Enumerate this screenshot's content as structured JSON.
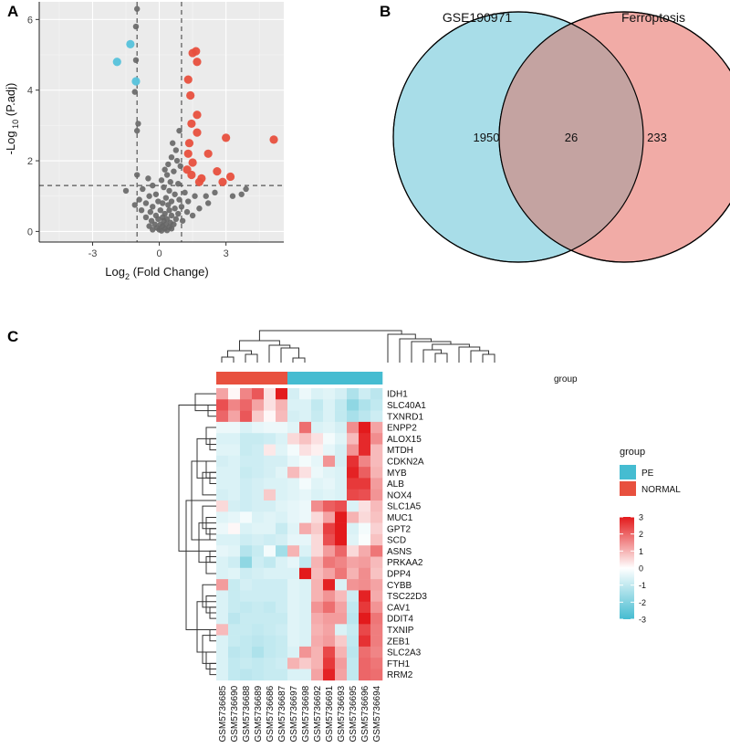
{
  "panels": {
    "a": "A",
    "b": "B",
    "c": "C"
  },
  "chart_data": [
    {
      "type": "scatter",
      "panel": "A",
      "title": "",
      "xlabel_main": "Log",
      "xlabel_sub": "2",
      "xlabel_rest": " (Fold Change)",
      "ylabel_main": "-Log",
      "ylabel_sub": " 10",
      "ylabel_rest": " (P.adj)",
      "xlim": [
        -5.4,
        5.6
      ],
      "ylim": [
        -0.3,
        6.5
      ],
      "x_ticks": [
        -3,
        0,
        3
      ],
      "y_ticks": [
        0,
        2,
        4,
        6
      ],
      "grid": true,
      "thresholds": {
        "log2fc": [
          -1,
          1
        ],
        "neg_log10_padj": 1.3
      },
      "colors": {
        "up": "#e8503e",
        "down": "#56c2db",
        "ns": "#666666",
        "background": "#ebebeb",
        "grid": "#ffffff"
      },
      "series": [
        {
          "name": "down",
          "points": [
            [
              -1.3,
              5.3
            ],
            [
              -1.9,
              4.8
            ],
            [
              -1.05,
              4.25
            ]
          ]
        },
        {
          "name": "up",
          "points": [
            [
              1.65,
              5.1
            ],
            [
              1.5,
              5.05
            ],
            [
              1.7,
              4.8
            ],
            [
              1.3,
              4.3
            ],
            [
              1.4,
              3.85
            ],
            [
              1.7,
              3.3
            ],
            [
              1.45,
              3.05
            ],
            [
              1.7,
              2.8
            ],
            [
              3.0,
              2.65
            ],
            [
              5.15,
              2.6
            ],
            [
              1.35,
              2.5
            ],
            [
              2.2,
              2.2
            ],
            [
              1.3,
              2.2
            ],
            [
              1.5,
              1.95
            ],
            [
              1.25,
              1.75
            ],
            [
              2.6,
              1.7
            ],
            [
              1.45,
              1.6
            ],
            [
              1.9,
              1.5
            ],
            [
              3.2,
              1.55
            ],
            [
              1.8,
              1.4
            ],
            [
              2.85,
              1.4
            ]
          ]
        },
        {
          "name": "ns",
          "points": [
            [
              -1.0,
              6.3
            ],
            [
              -1.05,
              5.8
            ],
            [
              -1.05,
              4.85
            ],
            [
              -1.1,
              3.95
            ],
            [
              -0.95,
              3.05
            ],
            [
              -1.0,
              2.85
            ],
            [
              0.9,
              2.85
            ],
            [
              0.6,
              2.5
            ],
            [
              0.75,
              2.3
            ],
            [
              0.55,
              2.1
            ],
            [
              0.8,
              2.0
            ],
            [
              0.4,
              1.9
            ],
            [
              0.95,
              1.85
            ],
            [
              0.25,
              1.75
            ],
            [
              0.65,
              1.7
            ],
            [
              0.35,
              1.6
            ],
            [
              -1.0,
              1.6
            ],
            [
              -0.5,
              1.5
            ],
            [
              0.1,
              1.45
            ],
            [
              0.5,
              1.4
            ],
            [
              0.85,
              1.35
            ],
            [
              -0.3,
              1.3
            ],
            [
              0.2,
              1.25
            ],
            [
              -0.75,
              1.2
            ],
            [
              0.45,
              1.15
            ],
            [
              -1.5,
              1.15
            ],
            [
              1.15,
              1.1
            ],
            [
              -0.15,
              1.05
            ],
            [
              0.7,
              1.05
            ],
            [
              3.9,
              1.2
            ],
            [
              3.7,
              1.05
            ],
            [
              3.3,
              1.0
            ],
            [
              1.6,
              1.0
            ],
            [
              2.1,
              1.0
            ],
            [
              2.5,
              1.1
            ],
            [
              -0.45,
              1.0
            ],
            [
              0.3,
              0.95
            ],
            [
              -0.9,
              0.9
            ],
            [
              0.9,
              0.9
            ],
            [
              -0.05,
              0.85
            ],
            [
              0.55,
              0.85
            ],
            [
              1.3,
              0.85
            ],
            [
              -0.6,
              0.8
            ],
            [
              0.15,
              0.8
            ],
            [
              2.2,
              0.8
            ],
            [
              -1.1,
              0.75
            ],
            [
              0.4,
              0.75
            ],
            [
              1.0,
              0.7
            ],
            [
              -0.3,
              0.7
            ],
            [
              0.7,
              0.65
            ],
            [
              1.8,
              0.65
            ],
            [
              -0.8,
              0.6
            ],
            [
              0.05,
              0.6
            ],
            [
              0.45,
              0.6
            ],
            [
              1.25,
              0.55
            ],
            [
              -0.4,
              0.55
            ],
            [
              0.25,
              0.5
            ],
            [
              0.85,
              0.5
            ],
            [
              -0.15,
              0.45
            ],
            [
              0.55,
              0.45
            ],
            [
              1.5,
              0.45
            ],
            [
              -0.6,
              0.4
            ],
            [
              0.15,
              0.4
            ],
            [
              -0.05,
              0.35
            ],
            [
              0.35,
              0.35
            ],
            [
              0.75,
              0.35
            ],
            [
              1.05,
              0.3
            ],
            [
              -0.35,
              0.3
            ],
            [
              0.2,
              0.3
            ],
            [
              0.5,
              0.25
            ],
            [
              -0.2,
              0.2
            ],
            [
              0.05,
              0.2
            ],
            [
              0.3,
              0.2
            ],
            [
              0.65,
              0.2
            ],
            [
              -0.45,
              0.15
            ],
            [
              0.15,
              0.15
            ],
            [
              0.45,
              0.12
            ],
            [
              -0.1,
              0.1
            ],
            [
              0.25,
              0.08
            ],
            [
              0.55,
              0.08
            ],
            [
              0.0,
              0.05
            ],
            [
              -0.3,
              0.05
            ],
            [
              0.35,
              0.03
            ],
            [
              0.1,
              0.02
            ]
          ]
        }
      ]
    },
    {
      "type": "venn",
      "panel": "B",
      "sets": [
        "GSE190971",
        "Ferroptosis"
      ],
      "values": {
        "left_only": "1950",
        "both": "26",
        "right_only": "233"
      },
      "colors": {
        "left": "#a8dde8",
        "right": "#f1aba6",
        "overlap": "#c4a3a1"
      }
    },
    {
      "type": "heatmap",
      "panel": "C",
      "samples": [
        "GSM5736685",
        "GSM5736690",
        "GSM5736688",
        "GSM5736689",
        "GSM5736686",
        "GSM5736687",
        "GSM5736697",
        "GSM5736698",
        "GSM5736692",
        "GSM5736691",
        "GSM5736693",
        "GSM5736695",
        "GSM5736696",
        "GSM5736694"
      ],
      "group_row_label": "group",
      "groups": [
        "NORMAL",
        "NORMAL",
        "NORMAL",
        "NORMAL",
        "NORMAL",
        "NORMAL",
        "PE",
        "PE",
        "PE",
        "PE",
        "PE",
        "PE",
        "PE",
        "PE"
      ],
      "group_colors": {
        "PE": "#45bcd1",
        "NORMAL": "#e8503e"
      },
      "legend_title": "group",
      "legend_entries": [
        "PE",
        "NORMAL"
      ],
      "scale_ticks": [
        "3",
        "2",
        "1",
        "0",
        "-1",
        "-2",
        "-3"
      ],
      "scale_range": [
        -3,
        3
      ],
      "genes": [
        "IDH1",
        "SLC40A1",
        "TXNRD1",
        "ENPP2",
        "ALOX15",
        "MTDH",
        "CDKN2A",
        "MYB",
        "ALB",
        "NOX4",
        "SLC1A5",
        "MUC1",
        "GPT2",
        "SCD",
        "ASNS",
        "PRKAA2",
        "DPP4",
        "CYBB",
        "TSC22D3",
        "CAV1",
        "DDIT4",
        "TXNIP",
        "ZEB1",
        "SLC2A3",
        "FTH1",
        "RRM2"
      ],
      "values": [
        [
          1.2,
          0.1,
          1.6,
          2.2,
          0.4,
          3.0,
          -0.7,
          -0.3,
          -0.6,
          -0.5,
          -0.7,
          -1.3,
          -0.8,
          -1.1
        ],
        [
          2.3,
          1.6,
          2.0,
          1.2,
          0.4,
          1.0,
          -0.6,
          -0.6,
          -1.0,
          -0.6,
          -1.0,
          -1.8,
          -1.3,
          -1.0
        ],
        [
          2.0,
          1.2,
          2.2,
          0.7,
          0.1,
          0.9,
          -0.7,
          -0.6,
          -0.9,
          -0.6,
          -1.0,
          -1.4,
          -1.1,
          -0.8
        ],
        [
          -0.3,
          -0.3,
          -0.6,
          -0.4,
          -0.3,
          -0.3,
          -0.5,
          1.9,
          -0.6,
          -0.5,
          -0.7,
          1.5,
          3.0,
          1.2
        ],
        [
          -0.6,
          -0.6,
          -0.9,
          -0.9,
          -0.8,
          -0.6,
          0.5,
          0.8,
          0.4,
          -0.2,
          -0.5,
          0.9,
          2.8,
          1.5
        ],
        [
          -0.5,
          -0.5,
          -0.9,
          -0.8,
          0.3,
          -0.5,
          -0.2,
          0.4,
          0.2,
          -0.4,
          -0.7,
          1.4,
          2.8,
          0.9
        ],
        [
          -0.7,
          -0.6,
          -0.8,
          -0.8,
          -0.7,
          -0.7,
          -0.4,
          -0.2,
          -0.4,
          1.4,
          -0.7,
          2.7,
          1.6,
          0.9
        ],
        [
          -0.6,
          -0.6,
          -0.9,
          -0.8,
          -0.7,
          -0.5,
          0.9,
          0.4,
          -0.3,
          -0.5,
          -0.6,
          2.9,
          2.1,
          1.0
        ],
        [
          -0.6,
          -0.6,
          -0.8,
          -0.7,
          -0.6,
          -0.6,
          -0.5,
          -0.2,
          -0.5,
          -0.4,
          -0.6,
          2.6,
          2.6,
          1.3
        ],
        [
          -0.7,
          -0.6,
          -0.8,
          -0.7,
          0.7,
          -0.6,
          -0.5,
          -0.4,
          -0.6,
          -0.5,
          -0.6,
          2.4,
          2.3,
          1.4
        ],
        [
          0.5,
          -0.7,
          -0.8,
          -0.7,
          -0.7,
          -0.5,
          -0.4,
          -0.3,
          1.5,
          2.1,
          2.3,
          -0.6,
          0.4,
          0.9
        ],
        [
          -0.5,
          -0.4,
          -0.2,
          -0.6,
          -0.5,
          -0.6,
          -0.4,
          -0.3,
          0.5,
          1.2,
          3.0,
          1.0,
          0.5,
          0.8
        ],
        [
          -0.3,
          0.1,
          -0.6,
          -0.5,
          -0.5,
          -0.9,
          -0.5,
          1.1,
          0.7,
          2.5,
          3.0,
          -0.6,
          -0.2,
          0.6
        ],
        [
          -0.6,
          -0.6,
          -0.8,
          -0.7,
          -0.8,
          -0.7,
          -0.4,
          -0.4,
          0.5,
          2.3,
          3.0,
          -0.5,
          -0.1,
          0.8
        ],
        [
          -0.4,
          -0.5,
          -1.2,
          -0.9,
          -0.2,
          -1.5,
          1.0,
          -0.6,
          0.5,
          1.3,
          2.0,
          0.5,
          1.1,
          1.8
        ],
        [
          -0.6,
          -0.8,
          -1.8,
          -0.8,
          -1.0,
          -0.6,
          -0.4,
          -1.0,
          1.0,
          1.8,
          1.6,
          1.2,
          1.3,
          0.9
        ],
        [
          -0.6,
          -0.5,
          -0.8,
          -0.7,
          -0.6,
          -0.6,
          -0.6,
          3.0,
          0.9,
          1.2,
          1.8,
          1.0,
          1.5,
          0.8
        ],
        [
          1.3,
          -0.9,
          -0.7,
          -0.8,
          -0.8,
          -0.8,
          -0.5,
          -0.6,
          1.0,
          2.9,
          -0.6,
          1.4,
          1.5,
          1.2
        ],
        [
          -0.6,
          -0.9,
          -0.8,
          -0.8,
          -0.8,
          -0.8,
          -0.5,
          -0.6,
          1.0,
          1.4,
          0.9,
          -0.8,
          2.9,
          1.1
        ],
        [
          -0.6,
          -0.9,
          -1.0,
          -0.9,
          -1.0,
          -0.8,
          -0.5,
          -0.6,
          1.4,
          1.9,
          1.2,
          -1.0,
          2.6,
          1.4
        ],
        [
          -0.6,
          -1.1,
          -0.9,
          -0.9,
          -0.9,
          -0.9,
          -0.5,
          -0.6,
          1.1,
          1.3,
          1.3,
          -1.1,
          3.0,
          1.8
        ],
        [
          0.9,
          -0.9,
          -0.9,
          -1.0,
          -0.9,
          -0.8,
          -0.5,
          -0.6,
          1.0,
          1.2,
          -0.6,
          -0.9,
          2.4,
          1.7
        ],
        [
          -0.6,
          -0.9,
          -1.0,
          -1.1,
          -1.0,
          -0.9,
          -0.5,
          -0.6,
          1.1,
          1.3,
          0.7,
          -1.0,
          2.7,
          1.7
        ],
        [
          -0.6,
          -1.1,
          -1.0,
          -1.3,
          -1.0,
          -0.9,
          -0.6,
          1.4,
          1.0,
          2.4,
          1.0,
          -1.1,
          1.9,
          1.6
        ],
        [
          -0.6,
          -1.0,
          -0.9,
          -1.0,
          -0.9,
          -0.8,
          1.0,
          0.7,
          1.0,
          2.6,
          1.3,
          -1.0,
          2.0,
          1.8
        ],
        [
          -0.6,
          -1.0,
          -1.1,
          -1.0,
          -0.9,
          -0.9,
          -0.6,
          -0.6,
          1.2,
          2.9,
          1.2,
          -1.0,
          2.0,
          1.9
        ]
      ]
    }
  ]
}
